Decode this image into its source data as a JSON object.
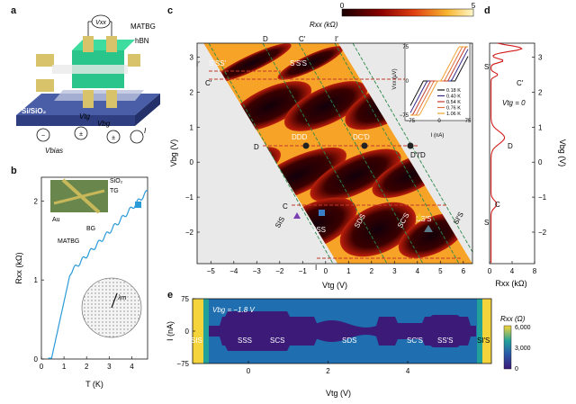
{
  "panels": {
    "a": {
      "label": "a",
      "vxx": "Vxx",
      "matbg": "MATBG",
      "hbn": "hBN",
      "substrate": "Si/SiO₂",
      "vtg": "Vtg",
      "vbg": "Vbg",
      "vbias": "Vbias",
      "current": "I"
    },
    "b": {
      "label": "b",
      "ylabel": "Rxx (kΩ)",
      "xlabel": "T (K)",
      "yticks": [
        "0",
        "1",
        "2"
      ],
      "xticks": [
        "0",
        "1",
        "2",
        "3",
        "4"
      ],
      "inset_labels": [
        "SiO₂",
        "TG",
        "Au",
        "MATBG",
        "BG"
      ],
      "lambda": "λm"
    },
    "c": {
      "label": "c",
      "colorbar_title": "Rxx (kΩ)",
      "colorbar_ticks": [
        "0",
        "5"
      ],
      "xlabel": "Vtg (V)",
      "ylabel": "Vbg (V)",
      "xticks": [
        "−5",
        "−4",
        "−3",
        "−2",
        "−1",
        "0",
        "1",
        "2",
        "3",
        "4",
        "5",
        "6"
      ],
      "yticks": [
        "3",
        "2",
        "1",
        "0",
        "−1",
        "−2"
      ],
      "region_labels": [
        "S′SS′",
        "S′S′S",
        "DDD",
        "DC′D",
        "D′I′D",
        "SIS",
        "SSS",
        "SDS",
        "SC′S",
        "SS′S",
        "SI′S"
      ],
      "line_labels": [
        "D",
        "C′",
        "I′",
        "I",
        "C′",
        "D",
        "C",
        "I"
      ],
      "inset": {
        "ylabel": "Vxx (μV)",
        "xlabel": "I (nA)",
        "yticks": [
          "75",
          "0",
          "−75"
        ],
        "xticks": [
          "−75",
          "0",
          "75"
        ],
        "legend": [
          "0.18 K",
          "0.40 K",
          "0.54 K",
          "0.76 K",
          "1.06 K"
        ]
      }
    },
    "d": {
      "label": "d",
      "xlabel": "Rxx (kΩ)",
      "ylabel": "Vbg (V)",
      "xticks": [
        "0",
        "4",
        "8"
      ],
      "yticks": [
        "3",
        "2",
        "1",
        "0",
        "−1",
        "−2"
      ],
      "vtg_text": "Vtg = 0",
      "markers": [
        "S′",
        "C′",
        "D",
        "C",
        "S"
      ]
    },
    "e": {
      "label": "e",
      "ylabel": "I (nA)",
      "xlabel": "Vtg (V)",
      "yticks": [
        "75",
        "0",
        "−75"
      ],
      "xticks": [
        "0",
        "2",
        "4"
      ],
      "vbg_text": "Vbg = −1.8 V",
      "region_labels": [
        "SIS",
        "SSS",
        "SCS",
        "SDS",
        "SC′S",
        "SS′S",
        "SI′S"
      ],
      "colorbar_title": "Rxx (Ω)",
      "colorbar_ticks": [
        "6,000",
        "3,000",
        "0"
      ]
    }
  },
  "colors": {
    "heat_low": "#1a0000",
    "heat_high": "#fff7c8",
    "dashed_green": "#2a8a4a",
    "dashed_red": "#c0392b",
    "curve_blue": "#2a9ad8",
    "curve_red": "#d11919",
    "viridis_dark": "#3b1a78",
    "viridis_mid": "#1f86a8",
    "viridis_high": "#f5d33a"
  }
}
